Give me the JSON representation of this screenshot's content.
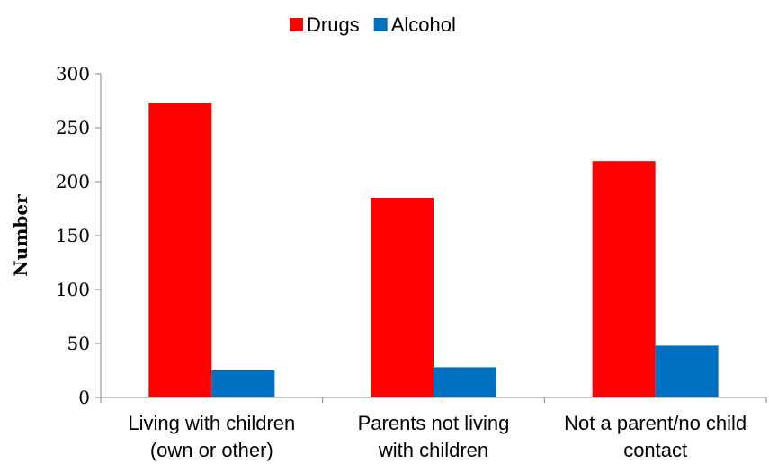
{
  "chart_data": {
    "type": "bar",
    "title": "",
    "xlabel": "",
    "ylabel": "Number",
    "ylim": [
      0,
      300
    ],
    "yticks": [
      0,
      50,
      100,
      150,
      200,
      250,
      300
    ],
    "grid": false,
    "legend_position": "top-center",
    "categories": [
      [
        "Living with children",
        "(own or other)"
      ],
      [
        "Parents not living",
        "with children"
      ],
      [
        "Not a parent/no child",
        "contact"
      ]
    ],
    "series": [
      {
        "name": "Drugs",
        "color": "#ff0000",
        "values": [
          273,
          185,
          219
        ]
      },
      {
        "name": "Alcohol",
        "color": "#0070c0",
        "values": [
          25,
          28,
          48
        ]
      }
    ]
  }
}
